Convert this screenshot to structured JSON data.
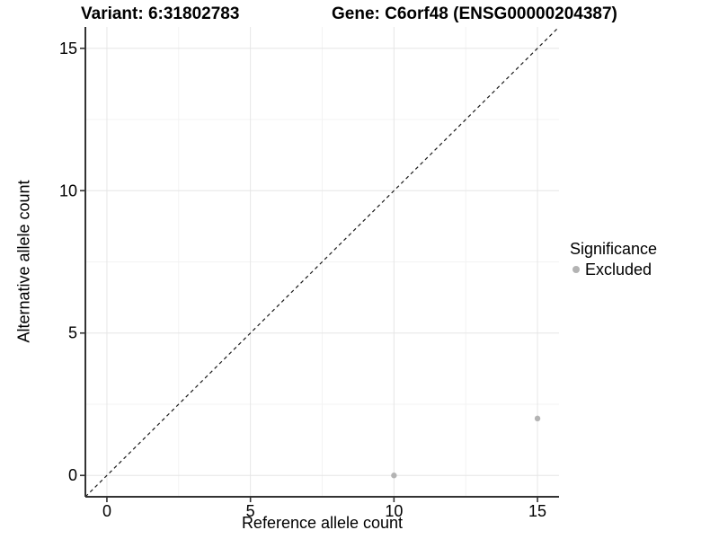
{
  "title": {
    "variant": "Variant: 6:31802783",
    "gene": "Gene: C6orf48 (ENSG00000204387)"
  },
  "axes": {
    "x": {
      "label": "Reference allele count",
      "ticks": [
        0,
        5,
        10,
        15
      ],
      "minor_ticks": [
        2.5,
        7.5,
        12.5
      ]
    },
    "y": {
      "label": "Alternative allele count",
      "ticks": [
        0,
        5,
        10,
        15
      ],
      "minor_ticks": [
        2.5,
        7.5,
        12.5
      ]
    }
  },
  "legend": {
    "title": "Significance",
    "items": [
      {
        "label": "Excluded",
        "color": "#b3b3b3"
      }
    ]
  },
  "colors": {
    "point": "#b3b3b3",
    "grid_major": "#e6e6e6",
    "grid_minor": "#f3f3f3",
    "axis_line": "#333333",
    "tick": "#333333",
    "dashed_line": "#1a1a1a",
    "text": "#000000"
  },
  "chart_data": {
    "type": "scatter",
    "title": "Variant: 6:31802783   Gene: C6orf48 (ENSG00000204387)",
    "xlabel": "Reference allele count",
    "ylabel": "Alternative allele count",
    "xlim": [
      -0.75,
      15.75
    ],
    "ylim": [
      -0.75,
      15.75
    ],
    "x_ticks": [
      0,
      5,
      10,
      15
    ],
    "y_ticks": [
      0,
      5,
      10,
      15
    ],
    "x_minor_ticks": [
      2.5,
      7.5,
      12.5
    ],
    "y_minor_ticks": [
      2.5,
      7.5,
      12.5
    ],
    "grid": true,
    "legend_position": "right-center",
    "series": [
      {
        "name": "Excluded",
        "color": "#b3b3b3",
        "points": [
          [
            10,
            0
          ],
          [
            15,
            2
          ]
        ]
      }
    ],
    "reference_line": {
      "type": "identity",
      "equation": "y = x",
      "style": "dashed",
      "from": [
        -0.75,
        -0.75
      ],
      "to": [
        15.75,
        15.75
      ]
    }
  }
}
